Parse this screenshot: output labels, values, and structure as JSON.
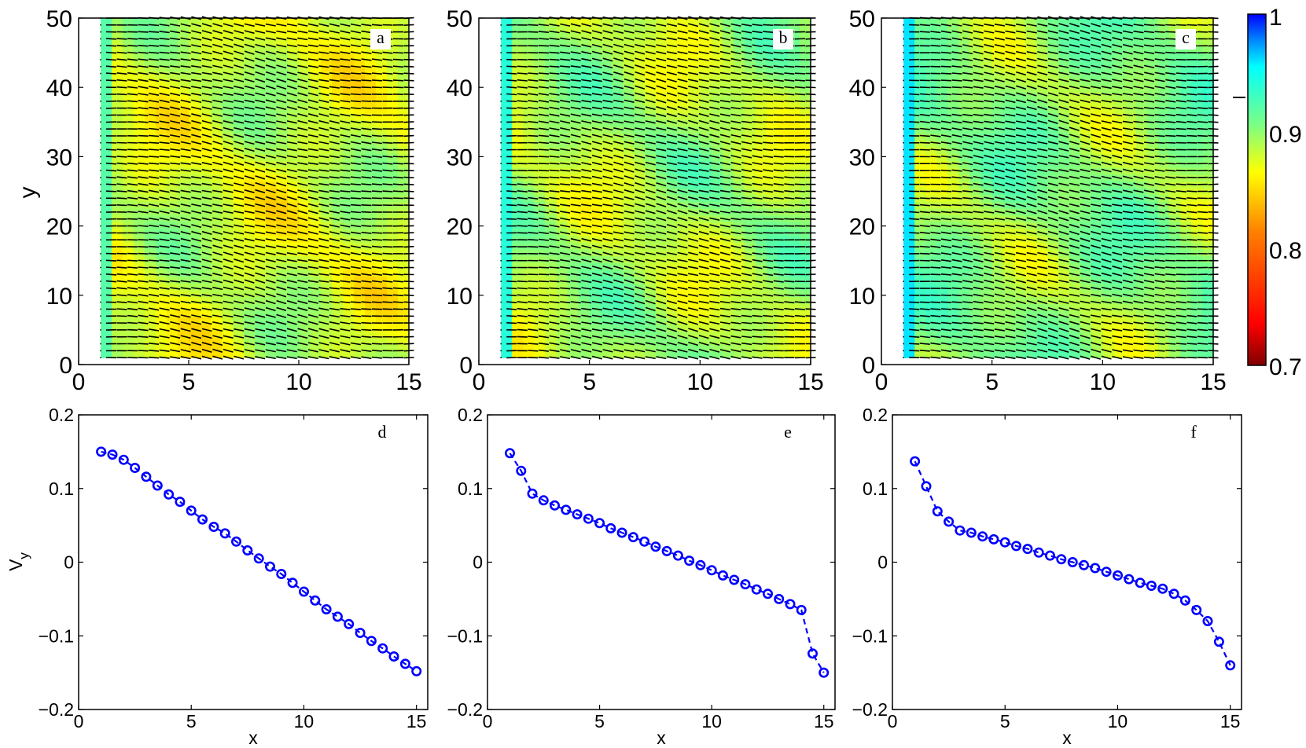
{
  "figure": {
    "colorbar": {
      "ticks": [
        "0.7",
        "0.8",
        "0.9",
        "1"
      ],
      "range": [
        0.7,
        1.0
      ],
      "colormap": [
        "#800000",
        "#ff0000",
        "#ff8000",
        "#ffff00",
        "#80ff80",
        "#00ffff",
        "#0080ff",
        "#0000ff"
      ]
    },
    "series_color": "#0000ff"
  },
  "chart_data": [
    {
      "panel": "a",
      "type": "heatmap",
      "title": "",
      "xlabel": "",
      "ylabel": "y",
      "xlim": [
        0,
        15
      ],
      "ylim": [
        0,
        50
      ],
      "xticks": [
        "0",
        "5",
        "10",
        "15"
      ],
      "yticks": [
        "0",
        "10",
        "20",
        "30",
        "40",
        "50"
      ],
      "field_range": [
        0.85,
        0.91
      ],
      "director_field": "short dark line segments tilted with local angle, varying smoothly across x"
    },
    {
      "panel": "b",
      "type": "heatmap",
      "title": "",
      "xlabel": "",
      "ylabel": "",
      "xlim": [
        0,
        15
      ],
      "ylim": [
        0,
        50
      ],
      "xticks": [
        "0",
        "5",
        "10",
        "15"
      ],
      "yticks": [
        "0",
        "10",
        "20",
        "30",
        "40",
        "50"
      ],
      "field_range": [
        0.85,
        0.93
      ],
      "director_field": "short dark line segments tilted with local angle"
    },
    {
      "panel": "c",
      "type": "heatmap",
      "title": "",
      "xlabel": "",
      "ylabel": "",
      "xlim": [
        0,
        15
      ],
      "ylim": [
        0,
        50
      ],
      "xticks": [
        "0",
        "5",
        "10",
        "15"
      ],
      "yticks": [
        "0",
        "10",
        "20",
        "30",
        "40",
        "50"
      ],
      "field_range": [
        0.85,
        0.95
      ],
      "director_field": "short dark line segments tilted with local angle"
    },
    {
      "panel": "d",
      "type": "line",
      "title": "",
      "xlabel": "x",
      "ylabel": "V",
      "ylabel_sub": "y",
      "xlim": [
        0,
        15.5
      ],
      "ylim": [
        -0.2,
        0.2
      ],
      "xticks": [
        "0",
        "5",
        "10",
        "15"
      ],
      "yticks": [
        "−0.2",
        "−0.1",
        "0",
        "0.1",
        "0.2"
      ],
      "series": [
        {
          "name": "V_y",
          "x": [
            1,
            1.5,
            2,
            2.5,
            3,
            3.5,
            4,
            4.5,
            5,
            5.5,
            6,
            6.5,
            7,
            7.5,
            8,
            8.5,
            9,
            9.5,
            10,
            10.5,
            11,
            11.5,
            12,
            12.5,
            13,
            13.5,
            14,
            14.5,
            15
          ],
          "y": [
            0.15,
            0.146,
            0.139,
            0.128,
            0.116,
            0.104,
            0.092,
            0.082,
            0.07,
            0.058,
            0.048,
            0.039,
            0.028,
            0.016,
            0.005,
            -0.006,
            -0.016,
            -0.028,
            -0.04,
            -0.052,
            -0.064,
            -0.074,
            -0.084,
            -0.096,
            -0.107,
            -0.117,
            -0.128,
            -0.138,
            -0.148
          ]
        }
      ]
    },
    {
      "panel": "e",
      "type": "line",
      "title": "",
      "xlabel": "x",
      "ylabel": "",
      "xlim": [
        0,
        15.5
      ],
      "ylim": [
        -0.2,
        0.2
      ],
      "xticks": [
        "0",
        "5",
        "10",
        "15"
      ],
      "yticks": [
        "−0.2",
        "−0.1",
        "0",
        "0.1",
        "0.2"
      ],
      "series": [
        {
          "name": "V_y",
          "x": [
            1,
            1.5,
            2,
            2.5,
            3,
            3.5,
            4,
            4.5,
            5,
            5.5,
            6,
            6.5,
            7,
            7.5,
            8,
            8.5,
            9,
            9.5,
            10,
            10.5,
            11,
            11.5,
            12,
            12.5,
            13,
            13.5,
            14,
            14.5,
            15
          ],
          "y": [
            0.148,
            0.124,
            0.093,
            0.084,
            0.077,
            0.071,
            0.065,
            0.059,
            0.053,
            0.046,
            0.04,
            0.034,
            0.028,
            0.021,
            0.015,
            0.009,
            0.002,
            -0.004,
            -0.011,
            -0.018,
            -0.024,
            -0.03,
            -0.037,
            -0.043,
            -0.05,
            -0.057,
            -0.065,
            -0.124,
            -0.15
          ]
        }
      ]
    },
    {
      "panel": "f",
      "type": "line",
      "title": "",
      "xlabel": "x",
      "ylabel": "",
      "xlim": [
        0,
        15.5
      ],
      "ylim": [
        -0.2,
        0.2
      ],
      "xticks": [
        "0",
        "5",
        "10",
        "15"
      ],
      "yticks": [
        "−0.2",
        "−0.1",
        "0",
        "0.1",
        "0.2"
      ],
      "series": [
        {
          "name": "V_y",
          "x": [
            1,
            1.5,
            2,
            2.5,
            3,
            3.5,
            4,
            4.5,
            5,
            5.5,
            6,
            6.5,
            7,
            7.5,
            8,
            8.5,
            9,
            9.5,
            10,
            10.5,
            11,
            11.5,
            12,
            12.5,
            13,
            13.5,
            14,
            14.5,
            15
          ],
          "y": [
            0.137,
            0.103,
            0.069,
            0.055,
            0.043,
            0.04,
            0.035,
            0.031,
            0.027,
            0.022,
            0.018,
            0.013,
            0.009,
            0.004,
            0.0,
            -0.004,
            -0.008,
            -0.013,
            -0.018,
            -0.023,
            -0.028,
            -0.032,
            -0.036,
            -0.043,
            -0.052,
            -0.065,
            -0.08,
            -0.108,
            -0.14
          ]
        }
      ]
    }
  ]
}
